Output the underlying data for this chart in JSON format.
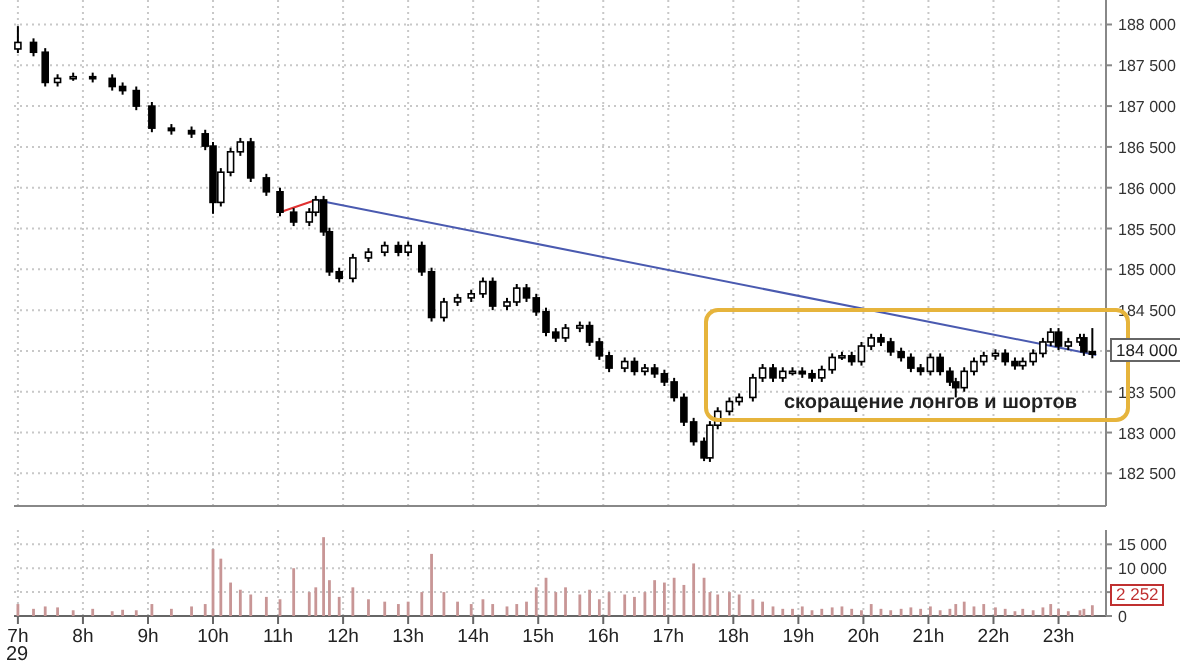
{
  "chart_data": [
    {
      "type": "candlestick",
      "color": "#000000",
      "grid": true,
      "tick_labels": "y",
      "xlim": [
        6.94,
        23.73
      ],
      "ylim": [
        182100,
        188300
      ],
      "yticks": [
        {
          "value": 182500,
          "label": "182 500"
        },
        {
          "value": 183000,
          "label": "183 000"
        },
        {
          "value": 183500,
          "label": "183 500"
        },
        {
          "value": 184000,
          "label": null
        },
        {
          "value": 184500,
          "label": "184 500"
        },
        {
          "value": 185000,
          "label": "185 000"
        },
        {
          "value": 185500,
          "label": "185 500"
        },
        {
          "value": 186000,
          "label": "186 000"
        },
        {
          "value": 186500,
          "label": "186 500"
        },
        {
          "value": 187000,
          "label": "187 000"
        },
        {
          "value": 187500,
          "label": "187 500"
        },
        {
          "value": 188000,
          "label": "188 000"
        }
      ],
      "xticks": [
        7,
        8,
        9,
        10,
        11,
        12,
        13,
        14,
        15,
        16,
        17,
        18,
        19,
        20,
        21,
        22,
        23
      ],
      "x": [
        7.0,
        7.24,
        7.42,
        7.61,
        7.85,
        8.15,
        8.45,
        8.61,
        8.82,
        9.06,
        9.36,
        9.67,
        9.88,
        10.0,
        10.12,
        10.27,
        10.42,
        10.58,
        10.82,
        11.03,
        11.24,
        11.48,
        11.58,
        11.7,
        11.79,
        11.94,
        12.15,
        12.39,
        12.64,
        12.85,
        13.0,
        13.21,
        13.36,
        13.55,
        13.76,
        13.97,
        14.15,
        14.3,
        14.52,
        14.67,
        14.82,
        14.97,
        15.12,
        15.27,
        15.42,
        15.64,
        15.79,
        15.94,
        16.09,
        16.33,
        16.48,
        16.64,
        16.79,
        16.94,
        17.09,
        17.24,
        17.39,
        17.55,
        17.64,
        17.76,
        17.94,
        18.09,
        18.3,
        18.45,
        18.61,
        18.76,
        18.91,
        19.06,
        19.21,
        19.36,
        19.52,
        19.67,
        19.82,
        19.97,
        20.12,
        20.27,
        20.42,
        20.58,
        20.73,
        20.88,
        21.03,
        21.18,
        21.33,
        21.42,
        21.55,
        21.7,
        21.85,
        22.03,
        22.18,
        22.33,
        22.45,
        22.61,
        22.76,
        22.88,
        23.0,
        23.15,
        23.33,
        23.39,
        23.52
      ],
      "ohlc": [
        [
          187700,
          187980,
          187650,
          187780
        ],
        [
          187780,
          187830,
          187610,
          187660
        ],
        [
          187660,
          187710,
          187240,
          187290
        ],
        [
          187290,
          187390,
          187240,
          187340
        ],
        [
          187340,
          187410,
          187310,
          187360
        ],
        [
          187360,
          187410,
          187290,
          187340
        ],
        [
          187340,
          187390,
          187190,
          187240
        ],
        [
          187240,
          187290,
          187140,
          187190
        ],
        [
          187190,
          187240,
          186950,
          187000
        ],
        [
          187000,
          187050,
          186680,
          186730
        ],
        [
          186730,
          186780,
          186650,
          186700
        ],
        [
          186700,
          186750,
          186610,
          186660
        ],
        [
          186660,
          186710,
          186460,
          186510
        ],
        [
          186510,
          186560,
          185680,
          185820
        ],
        [
          185820,
          186240,
          185770,
          186190
        ],
        [
          186190,
          186490,
          186140,
          186440
        ],
        [
          186440,
          186610,
          186390,
          186560
        ],
        [
          186560,
          186610,
          186070,
          186120
        ],
        [
          186120,
          186170,
          185900,
          185950
        ],
        [
          185950,
          186000,
          185650,
          185700
        ],
        [
          185700,
          185750,
          185530,
          185580
        ],
        [
          185580,
          185750,
          185530,
          185700
        ],
        [
          185700,
          185900,
          185650,
          185850
        ],
        [
          185850,
          185900,
          185410,
          185460
        ],
        [
          185460,
          185510,
          184920,
          184970
        ],
        [
          184970,
          185020,
          184840,
          184890
        ],
        [
          184890,
          185190,
          184840,
          185140
        ],
        [
          185140,
          185260,
          185090,
          185210
        ],
        [
          185210,
          185340,
          185160,
          185290
        ],
        [
          185290,
          185340,
          185160,
          185210
        ],
        [
          185210,
          185340,
          185160,
          185290
        ],
        [
          185290,
          185340,
          184920,
          184970
        ],
        [
          184970,
          185020,
          184360,
          184410
        ],
        [
          184410,
          184650,
          184360,
          184600
        ],
        [
          184600,
          184700,
          184550,
          184650
        ],
        [
          184650,
          184750,
          184600,
          184700
        ],
        [
          184700,
          184900,
          184650,
          184850
        ],
        [
          184850,
          184900,
          184500,
          184550
        ],
        [
          184550,
          184650,
          184500,
          184600
        ],
        [
          184600,
          184820,
          184550,
          184770
        ],
        [
          184770,
          184820,
          184600,
          184650
        ],
        [
          184650,
          184700,
          184430,
          184480
        ],
        [
          184480,
          184530,
          184180,
          184230
        ],
        [
          184230,
          184280,
          184110,
          184160
        ],
        [
          184160,
          184330,
          184110,
          184280
        ],
        [
          184280,
          184360,
          184230,
          184310
        ],
        [
          184310,
          184360,
          184060,
          184110
        ],
        [
          184110,
          184160,
          183890,
          183940
        ],
        [
          183940,
          183990,
          183740,
          183790
        ],
        [
          183790,
          183920,
          183740,
          183870
        ],
        [
          183870,
          183920,
          183700,
          183750
        ],
        [
          183750,
          183840,
          183700,
          183790
        ],
        [
          183790,
          183840,
          183670,
          183720
        ],
        [
          183720,
          183770,
          183570,
          183620
        ],
        [
          183620,
          183670,
          183380,
          183430
        ],
        [
          183430,
          183480,
          183080,
          183130
        ],
        [
          183130,
          183180,
          182840,
          182890
        ],
        [
          182890,
          182940,
          182650,
          182690
        ],
        [
          182690,
          183140,
          182640,
          183090
        ],
        [
          183090,
          183310,
          183040,
          183260
        ],
        [
          183260,
          183430,
          183210,
          183380
        ],
        [
          183380,
          183480,
          183330,
          183430
        ],
        [
          183430,
          183720,
          183380,
          183670
        ],
        [
          183670,
          183840,
          183620,
          183790
        ],
        [
          183790,
          183840,
          183620,
          183670
        ],
        [
          183670,
          183800,
          183620,
          183750
        ],
        [
          183750,
          183800,
          183700,
          183750
        ],
        [
          183750,
          183800,
          183670,
          183720
        ],
        [
          183720,
          183770,
          183620,
          183670
        ],
        [
          183670,
          183820,
          183620,
          183770
        ],
        [
          183770,
          183970,
          183720,
          183920
        ],
        [
          183920,
          183990,
          183890,
          183940
        ],
        [
          183940,
          183990,
          183820,
          183870
        ],
        [
          183870,
          184110,
          183820,
          184060
        ],
        [
          184060,
          184210,
          184010,
          184160
        ],
        [
          184160,
          184210,
          184060,
          184110
        ],
        [
          184110,
          184160,
          183940,
          183990
        ],
        [
          183990,
          184040,
          183870,
          183920
        ],
        [
          183920,
          183970,
          183740,
          183790
        ],
        [
          183790,
          183840,
          183700,
          183750
        ],
        [
          183750,
          183970,
          183700,
          183920
        ],
        [
          183920,
          183970,
          183700,
          183750
        ],
        [
          183750,
          183800,
          183570,
          183620
        ],
        [
          183620,
          183670,
          183430,
          183550
        ],
        [
          183550,
          183800,
          183500,
          183750
        ],
        [
          183750,
          183920,
          183700,
          183870
        ],
        [
          183870,
          183990,
          183820,
          183940
        ],
        [
          183940,
          184020,
          183890,
          183970
        ],
        [
          183970,
          184020,
          183820,
          183870
        ],
        [
          183870,
          183920,
          183770,
          183820
        ],
        [
          183820,
          183920,
          183770,
          183870
        ],
        [
          183870,
          184020,
          183820,
          183970
        ],
        [
          183970,
          184160,
          183920,
          184110
        ],
        [
          184110,
          184280,
          184060,
          184230
        ],
        [
          184230,
          184280,
          184010,
          184060
        ],
        [
          184060,
          184160,
          184010,
          184110
        ],
        [
          184110,
          184210,
          184060,
          184160
        ],
        [
          184160,
          184210,
          183940,
          183990
        ],
        [
          183990,
          184280,
          183910,
          183960
        ]
      ],
      "series": [
        {
          "type": "line",
          "x": [
            11.58,
            23.58
          ],
          "values": [
            185850,
            183950
          ],
          "color": "#4a5ab0"
        },
        {
          "type": "line",
          "x": [
            11.03,
            11.58
          ],
          "values": [
            185700,
            185850
          ],
          "color": "#e03030"
        }
      ],
      "annotations": [
        "184 000",
        "скоращение лонгов и шортов"
      ]
    },
    {
      "type": "bar",
      "color": "#c89696",
      "grid": true,
      "xlim": [
        6.94,
        23.73
      ],
      "ylim": [
        0,
        18000
      ],
      "xticks": [
        {
          "value": 7,
          "label": "7h"
        },
        {
          "value": 8,
          "label": "8h"
        },
        {
          "value": 9,
          "label": "9h"
        },
        {
          "value": 10,
          "label": "10h"
        },
        {
          "value": 11,
          "label": "11h"
        },
        {
          "value": 12,
          "label": "12h"
        },
        {
          "value": 13,
          "label": "13h"
        },
        {
          "value": 14,
          "label": "14h"
        },
        {
          "value": 15,
          "label": "15h"
        },
        {
          "value": 16,
          "label": "16h"
        },
        {
          "value": 17,
          "label": "17h"
        },
        {
          "value": 18,
          "label": "18h"
        },
        {
          "value": 19,
          "label": "19h"
        },
        {
          "value": 20,
          "label": "20h"
        },
        {
          "value": 21,
          "label": "21h"
        },
        {
          "value": 22,
          "label": "22h"
        },
        {
          "value": 23,
          "label": "23h"
        }
      ],
      "yticks": [
        0,
        {
          "value": 5000,
          "label": null
        },
        {
          "value": 10000,
          "label": "10 000"
        },
        {
          "value": 15000,
          "label": "15 000"
        }
      ],
      "x": [
        7.0,
        7.24,
        7.42,
        7.61,
        7.85,
        8.15,
        8.45,
        8.61,
        8.82,
        9.06,
        9.36,
        9.67,
        9.88,
        10.0,
        10.12,
        10.27,
        10.42,
        10.58,
        10.82,
        11.03,
        11.24,
        11.48,
        11.58,
        11.7,
        11.79,
        11.94,
        12.15,
        12.39,
        12.64,
        12.85,
        13.0,
        13.21,
        13.36,
        13.55,
        13.76,
        13.97,
        14.15,
        14.3,
        14.52,
        14.67,
        14.82,
        14.97,
        15.12,
        15.27,
        15.42,
        15.64,
        15.79,
        15.94,
        16.09,
        16.33,
        16.48,
        16.64,
        16.79,
        16.94,
        17.09,
        17.24,
        17.39,
        17.55,
        17.64,
        17.76,
        17.94,
        18.09,
        18.3,
        18.45,
        18.61,
        18.76,
        18.91,
        19.06,
        19.21,
        19.36,
        19.52,
        19.67,
        19.82,
        19.97,
        20.12,
        20.27,
        20.42,
        20.58,
        20.73,
        20.88,
        21.03,
        21.18,
        21.33,
        21.42,
        21.55,
        21.7,
        21.85,
        22.03,
        22.18,
        22.33,
        22.45,
        22.61,
        22.76,
        22.88,
        23.0,
        23.15,
        23.33,
        23.39,
        23.52
      ],
      "values": [
        2500,
        1500,
        2000,
        1800,
        1200,
        1500,
        1000,
        1300,
        1200,
        2500,
        1500,
        2000,
        2500,
        14000,
        12000,
        7000,
        5500,
        4500,
        4000,
        3500,
        10000,
        5000,
        6000,
        16500,
        7500,
        4000,
        6000,
        3500,
        3000,
        2500,
        3000,
        5000,
        13000,
        5000,
        3000,
        2500,
        3500,
        2500,
        2000,
        2500,
        3000,
        6000,
        8000,
        5000,
        6000,
        4500,
        5500,
        3500,
        5000,
        4500,
        4000,
        5000,
        7500,
        7000,
        8000,
        6500,
        11000,
        8000,
        5000,
        4500,
        5000,
        4500,
        3500,
        3000,
        2000,
        1500,
        1500,
        2000,
        1200,
        1500,
        1800,
        2000,
        1500,
        1200,
        2500,
        1500,
        1200,
        1500,
        1800,
        1500,
        2000,
        1200,
        1500,
        2500,
        3000,
        2000,
        2500,
        1800,
        1500,
        1000,
        1500,
        1200,
        1800,
        2500,
        1500,
        1000,
        1200,
        1500,
        2252
      ],
      "annotations": [
        "2 252",
        "29"
      ]
    }
  ]
}
